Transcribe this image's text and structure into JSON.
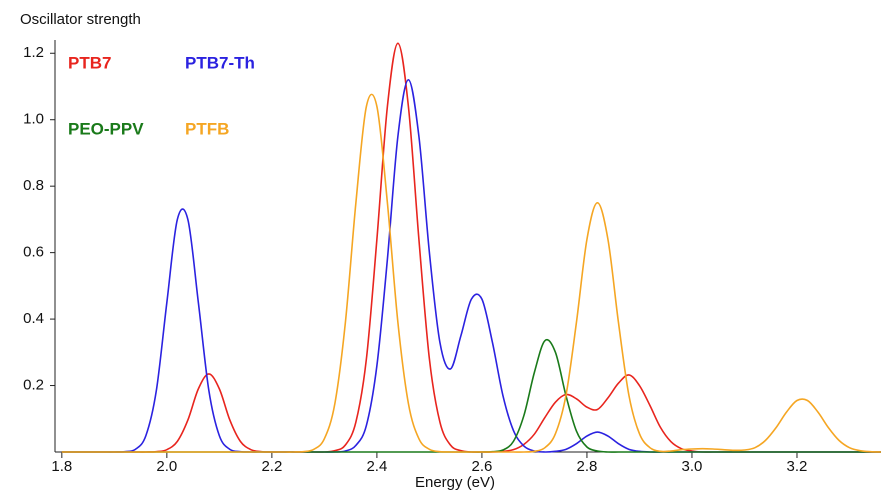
{
  "chart_data": {
    "type": "line",
    "title": "Oscillator strength",
    "x_label": "Energy (eV)",
    "x": [
      1.8,
      1.82,
      1.84,
      1.86,
      1.88,
      1.9,
      1.92,
      1.94,
      1.96,
      1.98,
      2.0,
      2.02,
      2.04,
      2.06,
      2.08,
      2.1,
      2.12,
      2.14,
      2.16,
      2.18,
      2.2,
      2.22,
      2.24,
      2.26,
      2.28,
      2.3,
      2.32,
      2.34,
      2.36,
      2.38,
      2.4,
      2.42,
      2.44,
      2.46,
      2.48,
      2.5,
      2.52,
      2.54,
      2.56,
      2.58,
      2.6,
      2.62,
      2.64,
      2.66,
      2.68,
      2.7,
      2.72,
      2.74,
      2.76,
      2.78,
      2.8,
      2.82,
      2.84,
      2.86,
      2.88,
      2.9,
      2.92,
      2.94,
      2.96,
      2.98,
      3.0,
      3.02,
      3.04,
      3.06,
      3.08,
      3.1,
      3.12,
      3.14,
      3.16,
      3.18,
      3.2,
      3.22,
      3.24,
      3.26,
      3.28,
      3.3,
      3.32,
      3.34,
      3.36
    ],
    "series": [
      {
        "name": "PTB7",
        "color": "#e8251e",
        "values": [
          0,
          0,
          0,
          0,
          0,
          0,
          0,
          0,
          0,
          0.001,
          0.007,
          0.032,
          0.096,
          0.19,
          0.235,
          0.19,
          0.096,
          0.032,
          0.007,
          0.001,
          0,
          0,
          0,
          0,
          0,
          0,
          0.004,
          0.021,
          0.09,
          0.28,
          0.64,
          1.04,
          1.23,
          1.04,
          0.64,
          0.28,
          0.09,
          0.021,
          0.004,
          0,
          0,
          0,
          0.002,
          0.007,
          0.023,
          0.054,
          0.104,
          0.15,
          0.173,
          0.16,
          0.135,
          0.128,
          0.163,
          0.207,
          0.232,
          0.2,
          0.14,
          0.074,
          0.031,
          0.01,
          0.003,
          0,
          0,
          0,
          0,
          0,
          0,
          0,
          0,
          0,
          0,
          0,
          0,
          0,
          0,
          0,
          0,
          0,
          0
        ]
      },
      {
        "name": "PTB7-Th",
        "color": "#2b22e0",
        "values": [
          0,
          0,
          0,
          0,
          0,
          0,
          0.001,
          0.008,
          0.049,
          0.185,
          0.45,
          0.7,
          0.7,
          0.45,
          0.185,
          0.049,
          0.008,
          0.001,
          0,
          0,
          0,
          0,
          0,
          0,
          0,
          0,
          0,
          0.003,
          0.02,
          0.08,
          0.26,
          0.58,
          0.95,
          1.12,
          0.95,
          0.6,
          0.33,
          0.25,
          0.35,
          0.46,
          0.46,
          0.33,
          0.17,
          0.065,
          0.018,
          0.003,
          0,
          0.002,
          0.008,
          0.025,
          0.048,
          0.06,
          0.048,
          0.025,
          0.008,
          0.002,
          0,
          0,
          0,
          0,
          0,
          0,
          0,
          0,
          0,
          0,
          0,
          0,
          0,
          0,
          0,
          0,
          0,
          0,
          0,
          0,
          0,
          0,
          0
        ]
      },
      {
        "name": "PEO-PPV",
        "color": "#1a7a1a",
        "values": [
          0,
          0,
          0,
          0,
          0,
          0,
          0,
          0,
          0,
          0,
          0,
          0,
          0,
          0,
          0,
          0,
          0,
          0,
          0,
          0,
          0,
          0,
          0,
          0,
          0,
          0,
          0,
          0,
          0,
          0,
          0,
          0,
          0,
          0,
          0,
          0,
          0,
          0,
          0,
          0,
          0,
          0.001,
          0.006,
          0.032,
          0.11,
          0.24,
          0.335,
          0.3,
          0.17,
          0.063,
          0.015,
          0.003,
          0,
          0,
          0,
          0,
          0,
          0,
          0,
          0,
          0,
          0,
          0,
          0,
          0,
          0,
          0,
          0,
          0,
          0,
          0,
          0,
          0,
          0,
          0,
          0,
          0,
          0,
          0
        ]
      },
      {
        "name": "PTFB",
        "color": "#f5a623",
        "values": [
          0,
          0,
          0,
          0,
          0,
          0,
          0,
          0,
          0,
          0,
          0,
          0,
          0,
          0,
          0,
          0,
          0,
          0,
          0,
          0,
          0,
          0,
          0,
          0.001,
          0.008,
          0.04,
          0.146,
          0.39,
          0.75,
          1.04,
          1.04,
          0.75,
          0.39,
          0.146,
          0.04,
          0.008,
          0.001,
          0,
          0,
          0,
          0,
          0,
          0,
          0,
          0,
          0.002,
          0.013,
          0.055,
          0.17,
          0.39,
          0.64,
          0.75,
          0.64,
          0.39,
          0.17,
          0.055,
          0.013,
          0.002,
          0.003,
          0.007,
          0.009,
          0.01,
          0.009,
          0.007,
          0.005,
          0.006,
          0.013,
          0.035,
          0.073,
          0.12,
          0.155,
          0.155,
          0.12,
          0.073,
          0.035,
          0.013,
          0.004,
          0.001,
          0
        ]
      }
    ],
    "xlim": [
      1.787,
      3.36
    ],
    "ylim": [
      0,
      1.27
    ],
    "xticks": [
      1.8,
      {
        "value": 2,
        "label": "2.0"
      },
      2.2,
      2.4,
      2.6,
      2.8,
      {
        "value": 3,
        "label": "3.0"
      },
      3.2
    ],
    "yticks": [
      0.2,
      0.4,
      0.6,
      0.8,
      {
        "value": 1,
        "label": "1.0"
      },
      1.2
    ],
    "grid": false
  }
}
